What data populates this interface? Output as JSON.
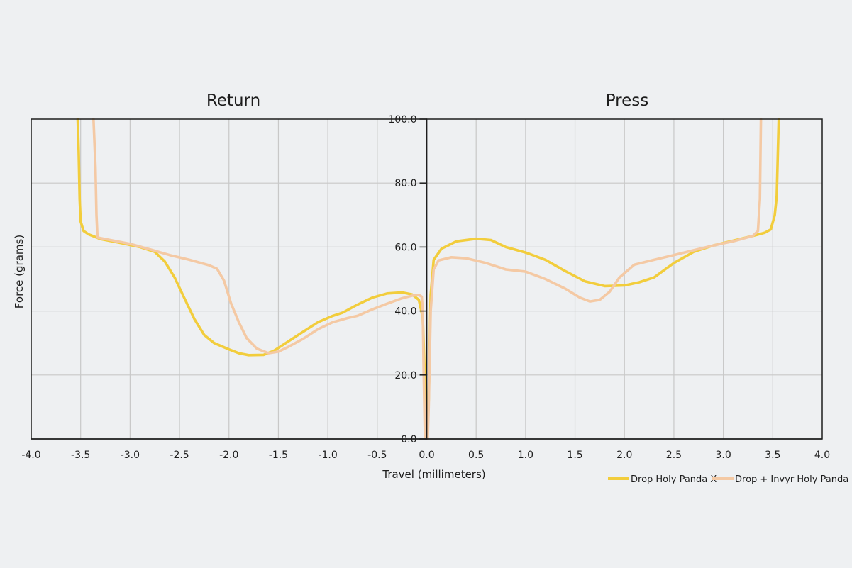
{
  "chart_data": {
    "type": "line",
    "panels": [
      {
        "title": "Return",
        "xlim": [
          -4.0,
          0.0
        ]
      },
      {
        "title": "Press",
        "xlim": [
          0.0,
          4.0
        ]
      }
    ],
    "xlabel": "Travel (millimeters)",
    "ylabel": "Force (grams)",
    "ylim": [
      0,
      100
    ],
    "x_ticks": [
      "-4.0",
      "-3.5",
      "-3.0",
      "-2.5",
      "-2.0",
      "-1.5",
      "-1.0",
      "-0.5",
      "0.0",
      "0.5",
      "1.0",
      "1.5",
      "2.0",
      "2.5",
      "3.0",
      "3.5",
      "4.0"
    ],
    "y_ticks": [
      "0.0",
      "20.0",
      "40.0",
      "60.0",
      "80.0",
      "100.0"
    ],
    "grid": true,
    "legend_position": "bottom-right",
    "colors": {
      "background": "#eef0f2",
      "grid": "#c8c8c8",
      "axis": "#1d1d1d"
    },
    "series": [
      {
        "name": "Drop Holy Panda X",
        "color": "#f2cd3c",
        "return": [
          [
            -3.53,
            100
          ],
          [
            -3.52,
            90
          ],
          [
            -3.51,
            75
          ],
          [
            -3.5,
            68
          ],
          [
            -3.47,
            65
          ],
          [
            -3.42,
            64
          ],
          [
            -3.3,
            62.5
          ],
          [
            -3.1,
            61.3
          ],
          [
            -2.9,
            60
          ],
          [
            -2.75,
            58.5
          ],
          [
            -2.65,
            55.5
          ],
          [
            -2.55,
            50.5
          ],
          [
            -2.45,
            44
          ],
          [
            -2.35,
            37.5
          ],
          [
            -2.25,
            32.5
          ],
          [
            -2.15,
            30
          ],
          [
            -2.0,
            28
          ],
          [
            -1.9,
            26.8
          ],
          [
            -1.8,
            26.2
          ],
          [
            -1.65,
            26.3
          ],
          [
            -1.55,
            27.5
          ],
          [
            -1.45,
            29.5
          ],
          [
            -1.3,
            32.5
          ],
          [
            -1.1,
            36.5
          ],
          [
            -0.95,
            38.5
          ],
          [
            -0.85,
            39.5
          ],
          [
            -0.7,
            42
          ],
          [
            -0.55,
            44.2
          ],
          [
            -0.4,
            45.5
          ],
          [
            -0.25,
            45.8
          ],
          [
            -0.15,
            45.2
          ],
          [
            -0.08,
            43.5
          ],
          [
            -0.04,
            38
          ],
          [
            -0.02,
            20
          ],
          [
            -0.01,
            5
          ],
          [
            0.0,
            0
          ]
        ],
        "press": [
          [
            0.0,
            0
          ],
          [
            0.02,
            12
          ],
          [
            0.04,
            45
          ],
          [
            0.07,
            56
          ],
          [
            0.15,
            59.5
          ],
          [
            0.3,
            61.8
          ],
          [
            0.5,
            62.6
          ],
          [
            0.65,
            62.2
          ],
          [
            0.8,
            60
          ],
          [
            1.0,
            58.3
          ],
          [
            1.2,
            56
          ],
          [
            1.4,
            52.5
          ],
          [
            1.6,
            49.3
          ],
          [
            1.8,
            47.8
          ],
          [
            2.0,
            48
          ],
          [
            2.15,
            49
          ],
          [
            2.3,
            50.5
          ],
          [
            2.5,
            55
          ],
          [
            2.7,
            58.5
          ],
          [
            2.9,
            60.5
          ],
          [
            3.1,
            62
          ],
          [
            3.3,
            63.5
          ],
          [
            3.42,
            64.5
          ],
          [
            3.48,
            65.5
          ],
          [
            3.52,
            70
          ],
          [
            3.54,
            76
          ],
          [
            3.55,
            88
          ],
          [
            3.56,
            100
          ]
        ]
      },
      {
        "name": "Drop + Invyr Holy Panda",
        "color": "#f4c9a4",
        "return": [
          [
            -3.37,
            100
          ],
          [
            -3.35,
            85
          ],
          [
            -3.34,
            70
          ],
          [
            -3.33,
            63
          ],
          [
            -3.25,
            62.5
          ],
          [
            -3.0,
            61
          ],
          [
            -2.8,
            59.3
          ],
          [
            -2.6,
            57.5
          ],
          [
            -2.4,
            56
          ],
          [
            -2.2,
            54.3
          ],
          [
            -2.12,
            53.2
          ],
          [
            -2.05,
            49.5
          ],
          [
            -1.98,
            42.5
          ],
          [
            -1.9,
            36.5
          ],
          [
            -1.82,
            31.5
          ],
          [
            -1.72,
            28.3
          ],
          [
            -1.6,
            26.8
          ],
          [
            -1.5,
            27.3
          ],
          [
            -1.4,
            28.8
          ],
          [
            -1.25,
            31.3
          ],
          [
            -1.1,
            34.3
          ],
          [
            -0.95,
            36.5
          ],
          [
            -0.8,
            37.8
          ],
          [
            -0.7,
            38.5
          ],
          [
            -0.55,
            40.5
          ],
          [
            -0.4,
            42.3
          ],
          [
            -0.25,
            44
          ],
          [
            -0.15,
            44.8
          ],
          [
            -0.08,
            45
          ],
          [
            -0.05,
            44.5
          ],
          [
            -0.04,
            40
          ],
          [
            -0.03,
            20
          ],
          [
            -0.02,
            4
          ],
          [
            -0.01,
            0
          ]
        ],
        "press": [
          [
            0.01,
            0
          ],
          [
            0.02,
            10
          ],
          [
            0.04,
            40
          ],
          [
            0.07,
            53
          ],
          [
            0.12,
            55.8
          ],
          [
            0.25,
            56.8
          ],
          [
            0.4,
            56.5
          ],
          [
            0.6,
            55
          ],
          [
            0.8,
            53
          ],
          [
            1.0,
            52.3
          ],
          [
            1.2,
            50
          ],
          [
            1.4,
            47
          ],
          [
            1.55,
            44.2
          ],
          [
            1.65,
            43
          ],
          [
            1.75,
            43.5
          ],
          [
            1.85,
            46
          ],
          [
            1.95,
            50.5
          ],
          [
            2.1,
            54.5
          ],
          [
            2.3,
            56
          ],
          [
            2.5,
            57.5
          ],
          [
            2.7,
            59
          ],
          [
            2.9,
            60.5
          ],
          [
            3.1,
            61.8
          ],
          [
            3.3,
            63.5
          ],
          [
            3.35,
            65
          ],
          [
            3.37,
            75
          ],
          [
            3.38,
            100
          ]
        ]
      }
    ]
  }
}
